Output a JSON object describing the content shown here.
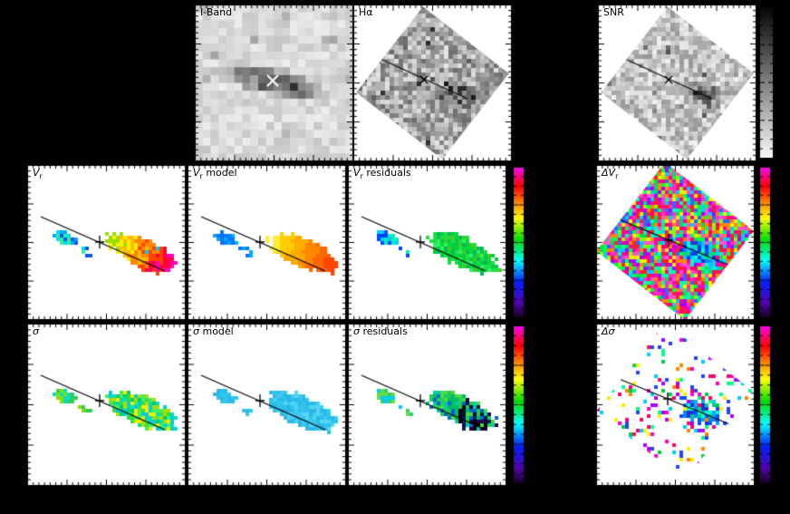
{
  "figure": {
    "background": "#000000",
    "panel_background": "#ffffff"
  },
  "chart_data": [
    {
      "type": "heatmap",
      "title": "I-Band",
      "colormap": "inverted-grayscale",
      "annotations": [
        "white X at galaxy center"
      ],
      "legend_position": "none"
    },
    {
      "type": "heatmap",
      "title": "Hα",
      "colormap": "inverted-grayscale",
      "annotations": [
        "kinematic axis line",
        "X at center"
      ],
      "legend_position": "none"
    },
    {
      "type": "heatmap",
      "title": "SNR",
      "colormap": "inverted-grayscale",
      "colorbar": "grayscale black-to-white",
      "annotations": [
        "kinematic axis line",
        "X at center"
      ]
    },
    {
      "type": "heatmap",
      "title": "Vr",
      "colormap": "rainbow",
      "annotations": [
        "kinematic axis line",
        "plus at center",
        "blue receding left clump",
        "yellow-orange-red-magenta main clump"
      ]
    },
    {
      "type": "heatmap",
      "title": "Vr model",
      "colormap": "rainbow",
      "annotations": [
        "smooth orange model velocity field"
      ]
    },
    {
      "type": "heatmap",
      "title": "Vr residuals",
      "colormap": "rainbow",
      "colorbar": "rainbow magenta-to-purple",
      "annotations": [
        "near-uniform green residuals"
      ]
    },
    {
      "type": "heatmap",
      "title": "ΔVr",
      "colormap": "rainbow",
      "colorbar": "rainbow magenta-to-purple",
      "annotations": [
        "noisy pink field with coherent blue-cyan blob on axis"
      ]
    },
    {
      "type": "heatmap",
      "title": "σ",
      "colormap": "rainbow",
      "annotations": [
        "green-cyan dispersion clumps"
      ]
    },
    {
      "type": "heatmap",
      "title": "σ model",
      "colormap": "rainbow",
      "annotations": [
        "uniform cyan model dispersion"
      ]
    },
    {
      "type": "heatmap",
      "title": "σ residuals",
      "colormap": "rainbow",
      "colorbar": "rainbow magenta-to-purple",
      "annotations": [
        "green residuals with dark navy/black cluster"
      ]
    },
    {
      "type": "heatmap",
      "title": "Δσ",
      "colormap": "rainbow",
      "colorbar": "rainbow magenta-to-purple",
      "annotations": [
        "sparse rainbow speckle with blue-green blob on axis"
      ]
    }
  ],
  "panels": [
    {
      "id": "iband",
      "type": "iband",
      "label_main": "I-Band",
      "label_sub": "",
      "label_rest": "",
      "italic": false,
      "marker": "x-white"
    },
    {
      "id": "halpha",
      "type": "diamond-gray",
      "label_main": "Hα",
      "label_sub": "",
      "label_rest": "",
      "italic": false,
      "marker": "x-black",
      "base": 108,
      "spread": 122,
      "blob_dark": 95
    },
    {
      "id": "snr",
      "type": "diamond-gray",
      "label_main": "SNR",
      "label_sub": "",
      "label_rest": "",
      "italic": false,
      "marker": "x-black",
      "base": 150,
      "spread": 92,
      "blob_dark": 150
    },
    {
      "id": "vr",
      "type": "scatter",
      "label_main": "V",
      "label_sub": "r",
      "label_rest": "",
      "italic": true,
      "marker": "plus",
      "palette": {
        "mode": "ramp",
        "jitter": 2.5,
        "speck": "#00ccee",
        "ramp": [
          "#99dd00",
          "#ffee00",
          "#ffbb00",
          "#ff8800",
          "#ff4400",
          "#ff0044",
          "#ff00bb"
        ],
        "left": [
          "#00aaff",
          "#0055ee",
          "#00ddff",
          "#33ee99"
        ]
      }
    },
    {
      "id": "vrmodel",
      "type": "scatter",
      "label_main": "V",
      "label_sub": "r",
      "label_rest": " model",
      "italic": true,
      "marker": "plus",
      "palette": {
        "mode": "ramp",
        "jitter": 0.8,
        "ramp": [
          "#ffee33",
          "#ffcc00",
          "#ffaa00",
          "#ff8800",
          "#ff6600",
          "#ff4400"
        ],
        "left": [
          "#00aaff",
          "#0077ff"
        ]
      }
    },
    {
      "id": "vrresid",
      "type": "scatter",
      "label_main": "V",
      "label_sub": "r",
      "label_rest": " residuals",
      "italic": true,
      "marker": "plus",
      "palette": {
        "mode": "random",
        "ramp": [
          "#00cc44",
          "#22dd44",
          "#44cc22",
          "#00bb55",
          "#33ee66",
          "#00dd33"
        ],
        "left": [
          "#00ccff",
          "#0044ff",
          "#00eebb"
        ]
      }
    },
    {
      "id": "dvr",
      "type": "diamond-rainbow",
      "label_main": "ΔV",
      "label_sub": "r",
      "label_rest": "",
      "italic": true,
      "marker": "plus",
      "palette": {
        "pinks": [
          "#ff00aa",
          "#ff33bb",
          "#ff0077",
          "#ff55cc",
          "#ff2222"
        ],
        "others": [
          "#00dd55",
          "#00ffaa",
          "#ffee00",
          "#00ccff",
          "#3366ff",
          "#88ff00",
          "#ff8800",
          "#00ff44",
          "#aa00ff"
        ],
        "blues": [
          "#0044ff",
          "#0088ff",
          "#00ccff",
          "#00ffcc",
          "#00dd77",
          "#2233dd"
        ],
        "greens": [
          "#00cc66",
          "#00ffbb",
          "#00ccff"
        ]
      }
    },
    {
      "id": "sigma",
      "type": "scatter",
      "label_main": "σ",
      "label_sub": "",
      "label_rest": "",
      "italic": true,
      "marker": "plus",
      "palette": {
        "mode": "random",
        "ramp": [
          "#00cc66",
          "#33dd44",
          "#aadd00",
          "#eeee00",
          "#00ddbb",
          "#44ee66",
          "#00ccdd"
        ],
        "left": [
          "#33cc55",
          "#00ddcc",
          "#88dd00"
        ]
      }
    },
    {
      "id": "sigmamodel",
      "type": "scatter",
      "label_main": "σ",
      "label_sub": "",
      "label_rest": " model",
      "italic": true,
      "marker": "plus",
      "palette": {
        "mode": "random",
        "ramp": [
          "#33c4ee",
          "#2ab8e8",
          "#40ccf2",
          "#28c0ea",
          "#55d4f4"
        ],
        "left": [
          "#33c4ee",
          "#2ab8e8"
        ]
      }
    },
    {
      "id": "sigmaresid",
      "type": "scatter",
      "label_main": "σ",
      "label_sub": "",
      "label_rest": " residuals",
      "italic": true,
      "marker": "plus",
      "palette": {
        "mode": "random",
        "ramp": [
          "#00bb66",
          "#22cc55",
          "#0066cc",
          "#00ccaa",
          "#44dd44"
        ],
        "darks": [
          "#000022",
          "#001133",
          "#002255",
          "#000000",
          "#220044"
        ],
        "left": [
          "#33cc66",
          "#00ccff",
          "#66dd44"
        ]
      }
    },
    {
      "id": "dsigma",
      "type": "diamond-sparse",
      "label_main": "Δσ",
      "label_sub": "",
      "label_rest": "",
      "italic": true,
      "marker": "plus",
      "palette": {
        "all": [
          "#ff0066",
          "#ff8800",
          "#ffee00",
          "#00cc44",
          "#00ccff",
          "#2244ff",
          "#aa00ff",
          "#ff00cc",
          "#00ff88"
        ],
        "blues": [
          "#0055ff",
          "#00aaff",
          "#00cc88",
          "#2233cc",
          "#00ffdd",
          "#0088ff"
        ],
        "greens": [
          "#00cc44",
          "#88dd00",
          "#00ddaa"
        ]
      }
    }
  ],
  "colorbars": [
    {
      "id": "gray",
      "kind": "grayscale",
      "stops": [
        [
          0,
          "#050505"
        ],
        [
          1,
          "#fafafa"
        ]
      ]
    },
    {
      "id": "vr",
      "kind": "rainbow",
      "stops": [
        [
          0,
          "#ff00ff"
        ],
        [
          0.13,
          "#ff0000"
        ],
        [
          0.24,
          "#ff8800"
        ],
        [
          0.34,
          "#ffff00"
        ],
        [
          0.48,
          "#00dd00"
        ],
        [
          0.62,
          "#00ffff"
        ],
        [
          0.76,
          "#0022ff"
        ],
        [
          0.9,
          "#5500aa"
        ],
        [
          1,
          "#14001e"
        ]
      ]
    },
    {
      "id": "dvr",
      "kind": "rainbow",
      "stops": [
        [
          0,
          "#ff00ff"
        ],
        [
          0.13,
          "#ff0000"
        ],
        [
          0.24,
          "#ff8800"
        ],
        [
          0.34,
          "#ffff00"
        ],
        [
          0.48,
          "#00dd00"
        ],
        [
          0.62,
          "#00ffff"
        ],
        [
          0.76,
          "#0022ff"
        ],
        [
          0.9,
          "#5500aa"
        ],
        [
          1,
          "#14001e"
        ]
      ]
    },
    {
      "id": "sigma",
      "kind": "rainbow",
      "stops": [
        [
          0,
          "#ff00ff"
        ],
        [
          0.13,
          "#ff0000"
        ],
        [
          0.24,
          "#ff8800"
        ],
        [
          0.34,
          "#ffff00"
        ],
        [
          0.48,
          "#00dd00"
        ],
        [
          0.62,
          "#00ffff"
        ],
        [
          0.76,
          "#0022ff"
        ],
        [
          0.9,
          "#5500aa"
        ],
        [
          1,
          "#14001e"
        ]
      ]
    },
    {
      "id": "dsigma",
      "kind": "rainbow",
      "stops": [
        [
          0,
          "#ff00ff"
        ],
        [
          0.13,
          "#ff0000"
        ],
        [
          0.24,
          "#ff8800"
        ],
        [
          0.34,
          "#ffff00"
        ],
        [
          0.48,
          "#00dd00"
        ],
        [
          0.62,
          "#00ffff"
        ],
        [
          0.76,
          "#0022ff"
        ],
        [
          0.9,
          "#5500aa"
        ],
        [
          1,
          "#14001e"
        ]
      ]
    }
  ]
}
